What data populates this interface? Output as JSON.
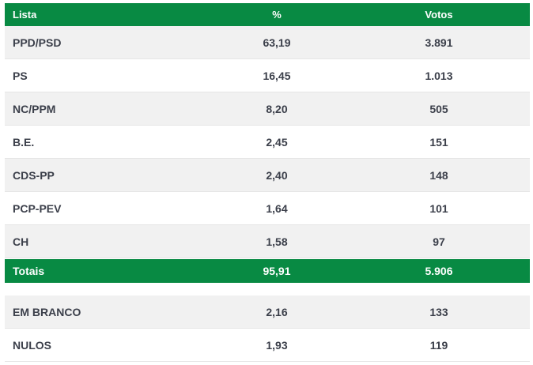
{
  "header": {
    "lista": "Lista",
    "pct": "%",
    "votos": "Votos"
  },
  "rows": [
    {
      "lista": "PPD/PSD",
      "pct": "63,19",
      "votos": "3.891"
    },
    {
      "lista": "PS",
      "pct": "16,45",
      "votos": "1.013"
    },
    {
      "lista": "NC/PPM",
      "pct": "8,20",
      "votos": "505"
    },
    {
      "lista": "B.E.",
      "pct": "2,45",
      "votos": "151"
    },
    {
      "lista": "CDS-PP",
      "pct": "2,40",
      "votos": "148"
    },
    {
      "lista": "PCP-PEV",
      "pct": "1,64",
      "votos": "101"
    },
    {
      "lista": "CH",
      "pct": "1,58",
      "votos": "97"
    }
  ],
  "totals": {
    "lista": "Totais",
    "pct": "95,91",
    "votos": "5.906"
  },
  "extra": [
    {
      "lista": "EM BRANCO",
      "pct": "2,16",
      "votos": "133"
    },
    {
      "lista": "NULOS",
      "pct": "1,93",
      "votos": "119"
    }
  ],
  "colors": {
    "header_bg": "#088a43",
    "row_alt_bg": "#f1f1f1",
    "text": "#3b3f4a"
  }
}
